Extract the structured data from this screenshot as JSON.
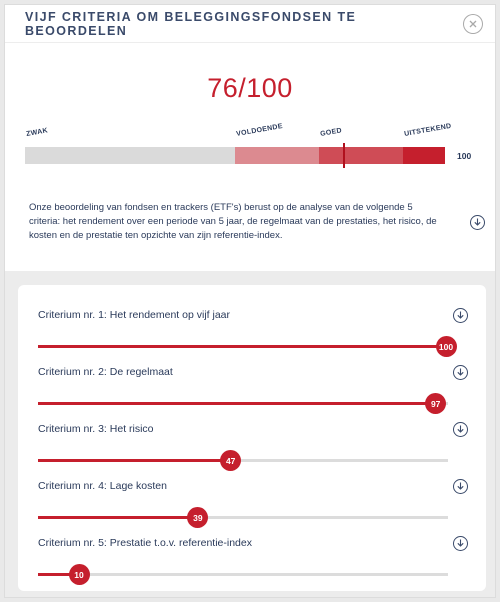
{
  "header": {
    "title": "VIJF CRITERIA OM BELEGGINGSFONDSEN TE BEOORDELEN"
  },
  "score": {
    "value": 76,
    "max": 100,
    "text": "76/100"
  },
  "scale": {
    "labels": [
      "ZWAK",
      "VOLDOENDE",
      "GOED",
      "UITSTEKEND"
    ],
    "boundaries": [
      0,
      50,
      70,
      90,
      100
    ],
    "max_label": "100",
    "colors": [
      "#dadada",
      "#dc8a90",
      "#cf4c56",
      "#c51f2d"
    ],
    "marker_value": 76
  },
  "description": "Onze beoordeling van fondsen en trackers (ETF's) berust op de analyse van de volgende 5 criteria: het rendement over een periode van 5 jaar, de regelmaat van de prestaties, het risico, de kosten en de prestatie ten opzichte van zijn referentie-index.",
  "criteria": [
    {
      "label": "Criterium nr. 1: Het rendement op vijf jaar",
      "value": 100
    },
    {
      "label": "Criterium nr. 2: De regelmaat",
      "value": 97
    },
    {
      "label": "Criterium nr. 3: Het risico",
      "value": 47
    },
    {
      "label": "Criterium nr. 4: Lage kosten",
      "value": 39
    },
    {
      "label": "Criterium nr. 5: Prestatie t.o.v. referentie-index",
      "value": 10
    }
  ],
  "icons": {
    "close": "close-icon",
    "info": "chevron-down-circle-icon"
  },
  "accent": "#c51f2d"
}
